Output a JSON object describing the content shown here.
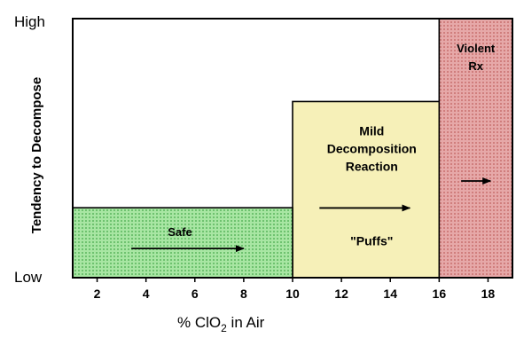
{
  "chart_data": {
    "type": "area",
    "title": "",
    "ylabel": "Tendency to Decompose",
    "y_levels": {
      "high": "High",
      "low": "Low"
    },
    "xlabel": {
      "prefix": "% ClO",
      "subscript": "2",
      "suffix": " in Air"
    },
    "xlim": [
      1,
      19
    ],
    "ylim": [
      0,
      1
    ],
    "x_ticks": [
      2,
      4,
      6,
      8,
      10,
      12,
      14,
      16,
      18
    ],
    "zones": [
      {
        "key": "safe",
        "label_lines": [
          "Safe"
        ],
        "x_start": 1,
        "x_end": 10,
        "level": 0.27,
        "fill": "#9ddf9a",
        "pattern": "dots"
      },
      {
        "key": "mild",
        "label_lines": [
          "Mild",
          "Decomposition",
          "Reaction"
        ],
        "sub_label": "\"Puffs\"",
        "x_start": 10,
        "x_end": 16.7,
        "level": 0.68,
        "fill": "#f6f0b8",
        "pattern": "none"
      },
      {
        "key": "violent",
        "label_lines": [
          "Violent",
          "Rx"
        ],
        "x_start": 16,
        "x_end": 19,
        "level": 1.0,
        "fill": "#e3a0a0",
        "pattern": "dots"
      }
    ]
  }
}
